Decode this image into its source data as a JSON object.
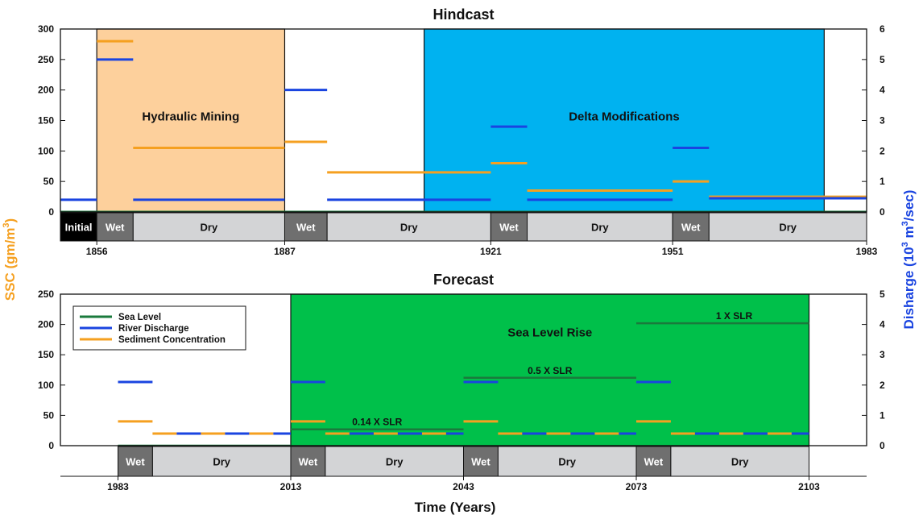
{
  "chart_data": [
    {
      "type": "timeline-bar",
      "title": "Hindcast",
      "ylim": [
        0,
        300
      ],
      "y2lim": [
        0,
        6
      ],
      "yticks": [
        0,
        50,
        100,
        150,
        200,
        250,
        300
      ],
      "y2ticks": [
        0,
        1,
        2,
        3,
        4,
        5,
        6
      ],
      "xticks": [
        1856,
        1887,
        1921,
        1951,
        1983
      ],
      "periods": [
        {
          "label": "Initial",
          "start": 1850,
          "end": 1856,
          "dark": true
        },
        {
          "label": "Wet",
          "start": 1856,
          "end": 1862
        },
        {
          "label": "Dry",
          "start": 1862,
          "end": 1887
        },
        {
          "label": "Wet",
          "start": 1887,
          "end": 1894
        },
        {
          "label": "Dry",
          "start": 1894,
          "end": 1921
        },
        {
          "label": "Wet",
          "start": 1921,
          "end": 1927
        },
        {
          "label": "Dry",
          "start": 1927,
          "end": 1951
        },
        {
          "label": "Wet",
          "start": 1951,
          "end": 1957
        },
        {
          "label": "Dry",
          "start": 1957,
          "end": 1983
        }
      ],
      "regions": [
        {
          "label": "Hydraulic Mining",
          "start": 1856,
          "end": 1887,
          "color": "#fdd09c"
        },
        {
          "label": "Delta Modifications",
          "start": 1910,
          "end": 1976,
          "color": "#00b2f0"
        }
      ],
      "sea_level": [
        {
          "x": [
            1850,
            1983
          ],
          "y": 0
        }
      ],
      "river_discharge": [
        {
          "x": [
            1850,
            1856
          ],
          "y": 0.4
        },
        {
          "x": [
            1856,
            1862
          ],
          "y": 5
        },
        {
          "x": [
            1862,
            1887
          ],
          "y": 0.4
        },
        {
          "x": [
            1887,
            1894
          ],
          "y": 4
        },
        {
          "x": [
            1894,
            1921
          ],
          "y": 0.4
        },
        {
          "x": [
            1921,
            1927
          ],
          "y": 2.8
        },
        {
          "x": [
            1927,
            1951
          ],
          "y": 0.4
        },
        {
          "x": [
            1951,
            1957
          ],
          "y": 2.1
        },
        {
          "x": [
            1957,
            1983
          ],
          "y": 0.45
        }
      ],
      "sediment_concentration": [
        {
          "x": [
            1856,
            1862
          ],
          "y": 280
        },
        {
          "x": [
            1862,
            1887
          ],
          "y": 105
        },
        {
          "x": [
            1887,
            1894
          ],
          "y": 115
        },
        {
          "x": [
            1894,
            1921
          ],
          "y": 65
        },
        {
          "x": [
            1921,
            1927
          ],
          "y": 80
        },
        {
          "x": [
            1927,
            1951
          ],
          "y": 35
        },
        {
          "x": [
            1951,
            1957
          ],
          "y": 50
        },
        {
          "x": [
            1957,
            1983
          ],
          "y": 25
        }
      ]
    },
    {
      "type": "timeline-bar",
      "title": "Forecast",
      "ylim": [
        0,
        250
      ],
      "y2lim": [
        0,
        5
      ],
      "yticks": [
        0,
        50,
        100,
        150,
        200,
        250
      ],
      "y2ticks": [
        0,
        1,
        2,
        3,
        4,
        5
      ],
      "xticks": [
        1983,
        2013,
        2043,
        2073,
        2103
      ],
      "periods": [
        {
          "label": "Wet",
          "start": 1983,
          "end": 1989
        },
        {
          "label": "Dry",
          "start": 1989,
          "end": 2013
        },
        {
          "label": "Wet",
          "start": 2013,
          "end": 2019
        },
        {
          "label": "Dry",
          "start": 2019,
          "end": 2043
        },
        {
          "label": "Wet",
          "start": 2043,
          "end": 2049
        },
        {
          "label": "Dry",
          "start": 2049,
          "end": 2073
        },
        {
          "label": "Wet",
          "start": 2073,
          "end": 2079
        },
        {
          "label": "Dry",
          "start": 2079,
          "end": 2103
        }
      ],
      "regions": [
        {
          "label": "Sea Level Rise",
          "start": 2013,
          "end": 2103,
          "color": "#00c04a"
        }
      ],
      "sea_level": [
        {
          "x": [
            1983,
            2013
          ],
          "y": 0
        },
        {
          "x": [
            2013,
            2043
          ],
          "y": 27
        },
        {
          "x": [
            2043,
            2073
          ],
          "y": 112
        },
        {
          "x": [
            2073,
            2103
          ],
          "y": 202
        }
      ],
      "sea_level_labels": [
        {
          "text": "0.14 X SLR",
          "x": 2028,
          "y": 27
        },
        {
          "text": "0.5 X SLR",
          "x": 2058,
          "y": 112
        },
        {
          "text": "1 X SLR",
          "x": 2090,
          "y": 202
        }
      ],
      "river_discharge": [
        {
          "x": [
            1983,
            1989
          ],
          "y": 2.1
        },
        {
          "x": [
            1989,
            2013
          ],
          "y": 0.4,
          "dashed": true
        },
        {
          "x": [
            2013,
            2019
          ],
          "y": 2.1
        },
        {
          "x": [
            2019,
            2043
          ],
          "y": 0.4,
          "dashed": true
        },
        {
          "x": [
            2043,
            2049
          ],
          "y": 2.1
        },
        {
          "x": [
            2049,
            2073
          ],
          "y": 0.4,
          "dashed": true
        },
        {
          "x": [
            2073,
            2079
          ],
          "y": 2.1
        },
        {
          "x": [
            2079,
            2103
          ],
          "y": 0.4,
          "dashed": true
        }
      ],
      "sediment_concentration": [
        {
          "x": [
            1983,
            1989
          ],
          "y": 40
        },
        {
          "x": [
            1989,
            2013
          ],
          "y": 20,
          "dashed": true
        },
        {
          "x": [
            2013,
            2019
          ],
          "y": 40
        },
        {
          "x": [
            2019,
            2043
          ],
          "y": 20,
          "dashed": true
        },
        {
          "x": [
            2043,
            2049
          ],
          "y": 40
        },
        {
          "x": [
            2049,
            2073
          ],
          "y": 20,
          "dashed": true
        },
        {
          "x": [
            2073,
            2079
          ],
          "y": 40
        },
        {
          "x": [
            2079,
            2103
          ],
          "y": 20,
          "dashed": true
        }
      ]
    }
  ],
  "legend": [
    {
      "name": "Sea Level",
      "color": "#1a7a3c"
    },
    {
      "name": "River Discharge",
      "color": "#1a44e0"
    },
    {
      "name": "Sediment Concentration",
      "color": "#f5a020"
    }
  ],
  "axis_labels": {
    "y_left_prefix": "SSC (gm/m",
    "y_left_sup": "3",
    "y_left_suffix": ")",
    "y_right_prefix": "Disharge (10",
    "y_right_sup": "3",
    "y_right_mid": " m",
    "y_right_sup2": "3",
    "y_right_suffix": "/sec)",
    "x": "Time (Years)"
  },
  "colors": {
    "sea_level": "#1a7a3c",
    "river_discharge": "#1a44e0",
    "sediment_concentration": "#f5a020",
    "wet_box": "#6f6f6f",
    "dry_box": "#d3d4d6",
    "initial_box": "#000000"
  }
}
